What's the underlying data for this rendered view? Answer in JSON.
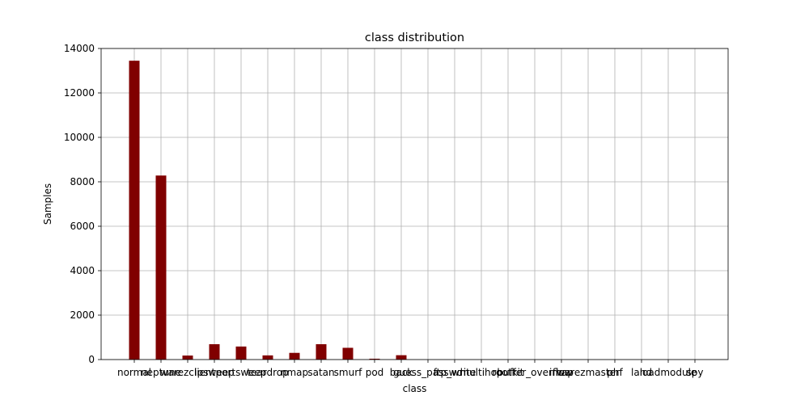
{
  "chart_data": {
    "type": "bar",
    "title": "class distribution",
    "xlabel": "class",
    "ylabel": "Samples",
    "categories": [
      "normal",
      "neptune",
      "warezclient",
      "ipsweep",
      "portsweep",
      "teardrop",
      "nmap",
      "satan",
      "smurf",
      "pod",
      "back",
      "guess_passwd",
      "ftp_write",
      "multihop",
      "rootkit",
      "buffer_overflow",
      "imap",
      "warezmaster",
      "phf",
      "land",
      "loadmodule",
      "spy"
    ],
    "values": [
      13449,
      8282,
      181,
      691,
      587,
      188,
      301,
      691,
      529,
      38,
      196,
      0,
      0,
      0,
      0,
      0,
      0,
      0,
      0,
      0,
      0,
      0
    ],
    "ylim": [
      0,
      14000
    ],
    "yticks": [
      0,
      2000,
      4000,
      6000,
      8000,
      10000,
      12000,
      14000
    ],
    "grid": true,
    "bar_color": "#800000"
  }
}
